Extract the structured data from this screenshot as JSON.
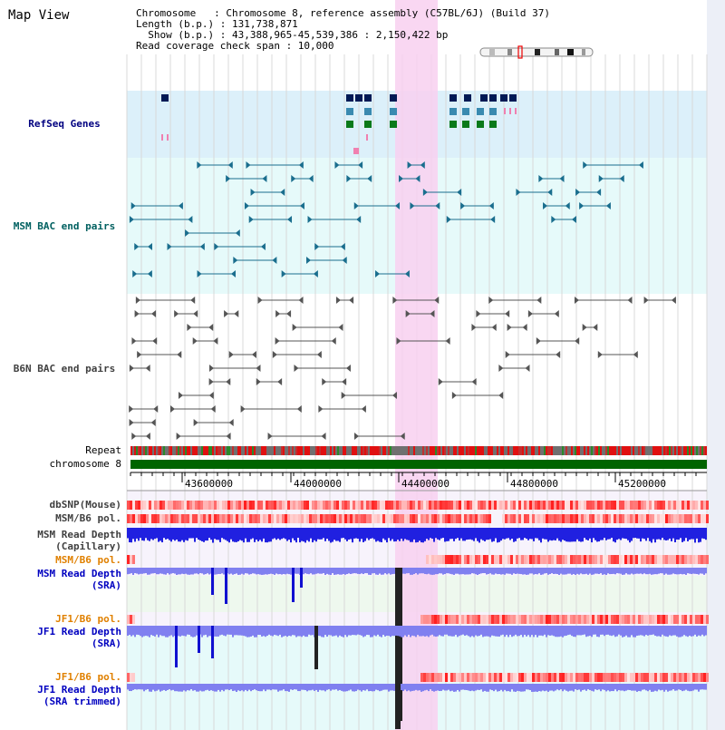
{
  "view": {
    "title": "Map View",
    "info_lines": [
      "Chromosome   : Chromosome 8, reference assembly (C57BL/6J) (Build 37)",
      "Length (b.p.) : 131,738,871",
      "  Show (b.p.) : 43,388,965-45,539,386 : 2,150,422 bp",
      "Read coverage check span : 10,000"
    ]
  },
  "tracks": {
    "refseq": {
      "label": "RefSeq Genes",
      "color": "#000080"
    },
    "msm_bac": {
      "label": "MSM BAC end pairs",
      "color": "#006060"
    },
    "b6n_bac": {
      "label": "B6N BAC end pairs",
      "color": "#404040"
    },
    "repeat": {
      "label": "Repeat"
    },
    "chromosome": {
      "label": "chromosome 8"
    },
    "dbsnp": {
      "label": "dbSNP(Mouse)"
    },
    "msm_b6_pol_1": {
      "label": "MSM/B6 pol."
    },
    "msm_depth_cap": {
      "label_1": "MSM Read Depth",
      "label_2": "(Capillary)"
    },
    "msm_b6_pol_2": {
      "label": "MSM/B6 pol.",
      "color": "#e08000"
    },
    "msm_depth_sra": {
      "label_1": "MSM Read Depth",
      "label_2": "(SRA)",
      "color": "#0000c0"
    },
    "jf1_b6_pol_1": {
      "label": "JF1/B6 pol.",
      "color": "#e08000"
    },
    "jf1_depth_sra": {
      "label_1": "JF1 Read Depth",
      "label_2": "(SRA)",
      "color": "#0000c0"
    },
    "jf1_b6_pol_2": {
      "label": "JF1/B6 pol.",
      "color": "#e08000"
    },
    "jf1_depth_trim": {
      "label_1": "JF1 Read Depth",
      "label_2": "(SRA trimmed)",
      "color": "#0000c0"
    }
  },
  "ruler": {
    "ticks": [
      "43600000",
      "44000000",
      "44400000",
      "44800000",
      "45200000"
    ]
  },
  "colors": {
    "refseq_bg": "#dcf0fa",
    "msm_bac_bg": "#e6fafa",
    "highlight": "#f8d0f0",
    "chromosome_bar": "#006400"
  }
}
